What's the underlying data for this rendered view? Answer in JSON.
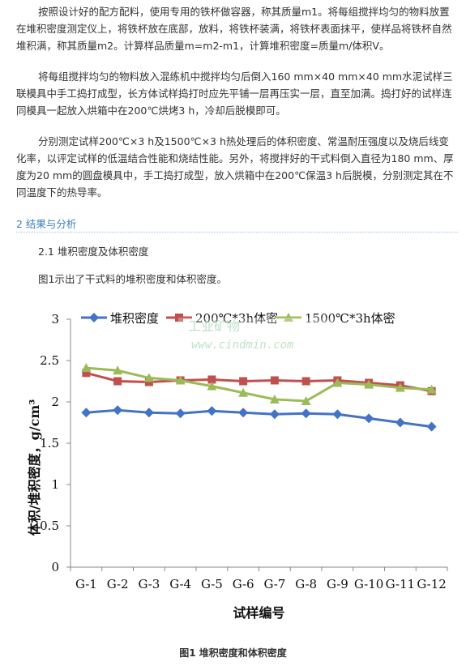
{
  "paragraphs": {
    "p1": "按照设计好的配方配料，使用专用的铁杯做容器，称其质量m1。将每组搅拌均匀的物料放置在堆积密度测定仪上，将铁杯放在底部，放料，将铁杯装满，将铁杯表面抹平，使样品将铁杯自然堆积满，称其质量m2。计算样品质量m=m2-m1，计算堆积密度=质量m/体积V。",
    "p2": "将每组搅拌均匀的物料放入混练机中搅拌均匀后倒入160 mm×40 mm×40 mm水泥试样三联模具中手工捣打成型，长方体试样捣打时应先平铺一层再压实一层，直至加满。捣打好的试样连同模具一起放入烘箱中在200℃烘烤3 h，冷却后脱模即可。",
    "p3": "分别测定试样200℃×3 h及1500℃×3 h热处理后的体积密度、常温耐压强度以及烧后线变化率，以评定试样的低温结合性能和烧结性能。另外，将搅拌好的干式料倒入直径为180 mm、厚度为20 mm的圆盘模具中，手工捣打成型，放入烘箱中在200℃保温3 h后脱模，分别测定其在不同温度下的热导率。"
  },
  "section_heading": "2 结果与分析",
  "subsection_heading": "2.1 堆积密度及体积密度",
  "figure_intro": "图1示出了干式料的堆积密度和体积密度。",
  "watermark": {
    "line1": "工业矿物",
    "line2": "www.cindmin.com"
  },
  "chart_data": {
    "type": "line",
    "categories": [
      "G-1",
      "G-2",
      "G-3",
      "G-4",
      "G-5",
      "G-6",
      "G-7",
      "G-8",
      "G-9",
      "G-10",
      "G-11",
      "G-12"
    ],
    "ylabel": "体积/堆积密度，g/cm³",
    "xlabel": "试样编号",
    "ylim": [
      0,
      3
    ],
    "yticks": [
      "0",
      "0.5",
      "1",
      "1.5",
      "2",
      "2.5",
      "3"
    ],
    "grid": false,
    "legend_position": "top",
    "series": [
      {
        "name": "堆积密度",
        "color": "#4472c4",
        "marker": "diamond",
        "values": [
          1.87,
          1.9,
          1.87,
          1.86,
          1.89,
          1.87,
          1.85,
          1.86,
          1.85,
          1.8,
          1.75,
          1.7
        ]
      },
      {
        "name": "200℃*3h体密",
        "color": "#c0504d",
        "marker": "square",
        "values": [
          2.35,
          2.25,
          2.24,
          2.26,
          2.27,
          2.25,
          2.26,
          2.25,
          2.26,
          2.23,
          2.2,
          2.13
        ]
      },
      {
        "name": "1500℃*3h体密",
        "color": "#9bbb59",
        "marker": "triangle",
        "values": [
          2.41,
          2.38,
          2.29,
          2.26,
          2.19,
          2.11,
          2.03,
          2.01,
          2.23,
          2.21,
          2.17,
          2.15
        ]
      }
    ]
  },
  "caption": "图1 堆积密度和体积密度"
}
